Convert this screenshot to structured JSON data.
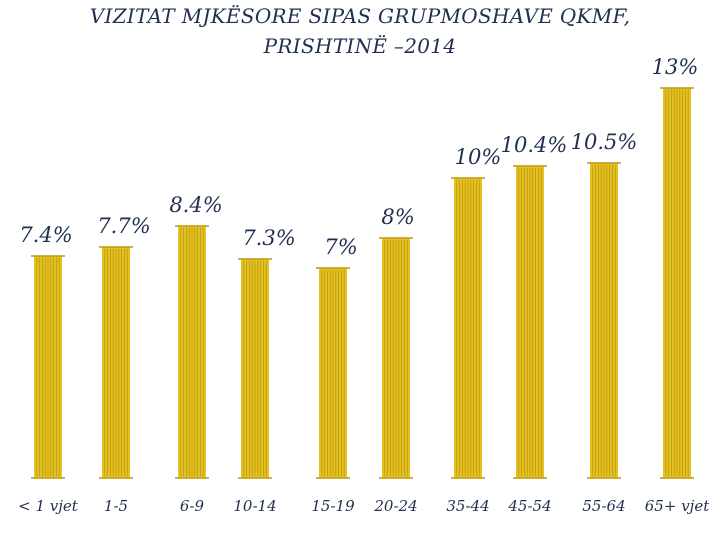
{
  "chart_data": {
    "type": "bar",
    "title": "VIZITAT MJKËSORE  SIPAS  GRUPMOSHAVE QKMF,",
    "subtitle": "PRISHTINË –2014",
    "xlabel": "",
    "ylabel": "",
    "grid": false,
    "legend": "none",
    "categories": [
      "< 1 vjet",
      "1-5",
      "6-9",
      "10-14",
      "15-19",
      "20-24",
      "35-44",
      "45-54",
      "55-64",
      "65+ vjet"
    ],
    "values": [
      7.4,
      7.7,
      8.4,
      7.3,
      7.0,
      8.0,
      10.0,
      10.4,
      10.5,
      13.0
    ],
    "data_labels": [
      "7.4%",
      "7.7%",
      "8.4%",
      "7.3%",
      "7%",
      "8%",
      "10%",
      "10.4%",
      "10.5%",
      "13%"
    ],
    "ylim": [
      0,
      13
    ],
    "bar_color": "#e6c020",
    "bar_stripe_color": "#b89a10",
    "text_color": "#1f2f4f"
  }
}
